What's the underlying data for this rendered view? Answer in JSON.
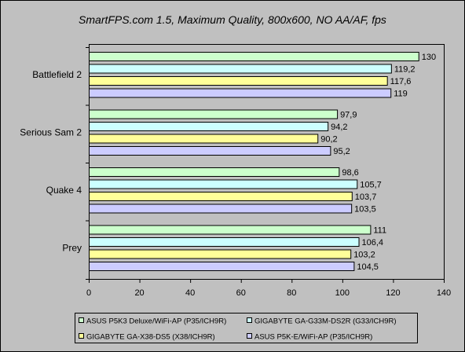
{
  "chart_data": {
    "type": "bar",
    "orientation": "horizontal",
    "title": "SmartFPS.com 1.5, Maximum Quality, 800x600, NO AA/AF, fps",
    "categories": [
      "Battlefield 2",
      "Serious Sam 2",
      "Quake 4",
      "Prey"
    ],
    "series": [
      {
        "name": "ASUS P5K3 Deluxe/WiFi-AP (P35/ICH9R)",
        "color": "#ccffcc",
        "values": [
          130,
          97.9,
          98.6,
          111
        ],
        "labels": [
          "130",
          "97,9",
          "98,6",
          "111"
        ]
      },
      {
        "name": "GIGABYTE GA-G33M-DS2R (G33/ICH9R)",
        "color": "#ccffff",
        "values": [
          119.2,
          94.2,
          105.7,
          106.4
        ],
        "labels": [
          "119,2",
          "94,2",
          "105,7",
          "106,4"
        ]
      },
      {
        "name": "GIGABYTE GA-X38-DS5 (X38/ICH9R)",
        "color": "#ffff99",
        "values": [
          117.6,
          90.2,
          103.7,
          103.2
        ],
        "labels": [
          "117,6",
          "90,2",
          "103,7",
          "103,2"
        ]
      },
      {
        "name": "ASUS P5K-E/WiFi-AP (P35/ICH9R)",
        "color": "#ccccff",
        "values": [
          119,
          95.2,
          103.5,
          104.5
        ],
        "labels": [
          "119",
          "95,2",
          "103,5",
          "104,5"
        ]
      }
    ],
    "xlim": [
      0,
      140
    ],
    "xticks": [
      0,
      20,
      40,
      60,
      80,
      100,
      120,
      140
    ],
    "grid": false,
    "legend_position": "bottom"
  },
  "colors": {
    "page_background": "#c0c0c0",
    "plot_background": "#c0c0c0",
    "frame": "#000000"
  }
}
